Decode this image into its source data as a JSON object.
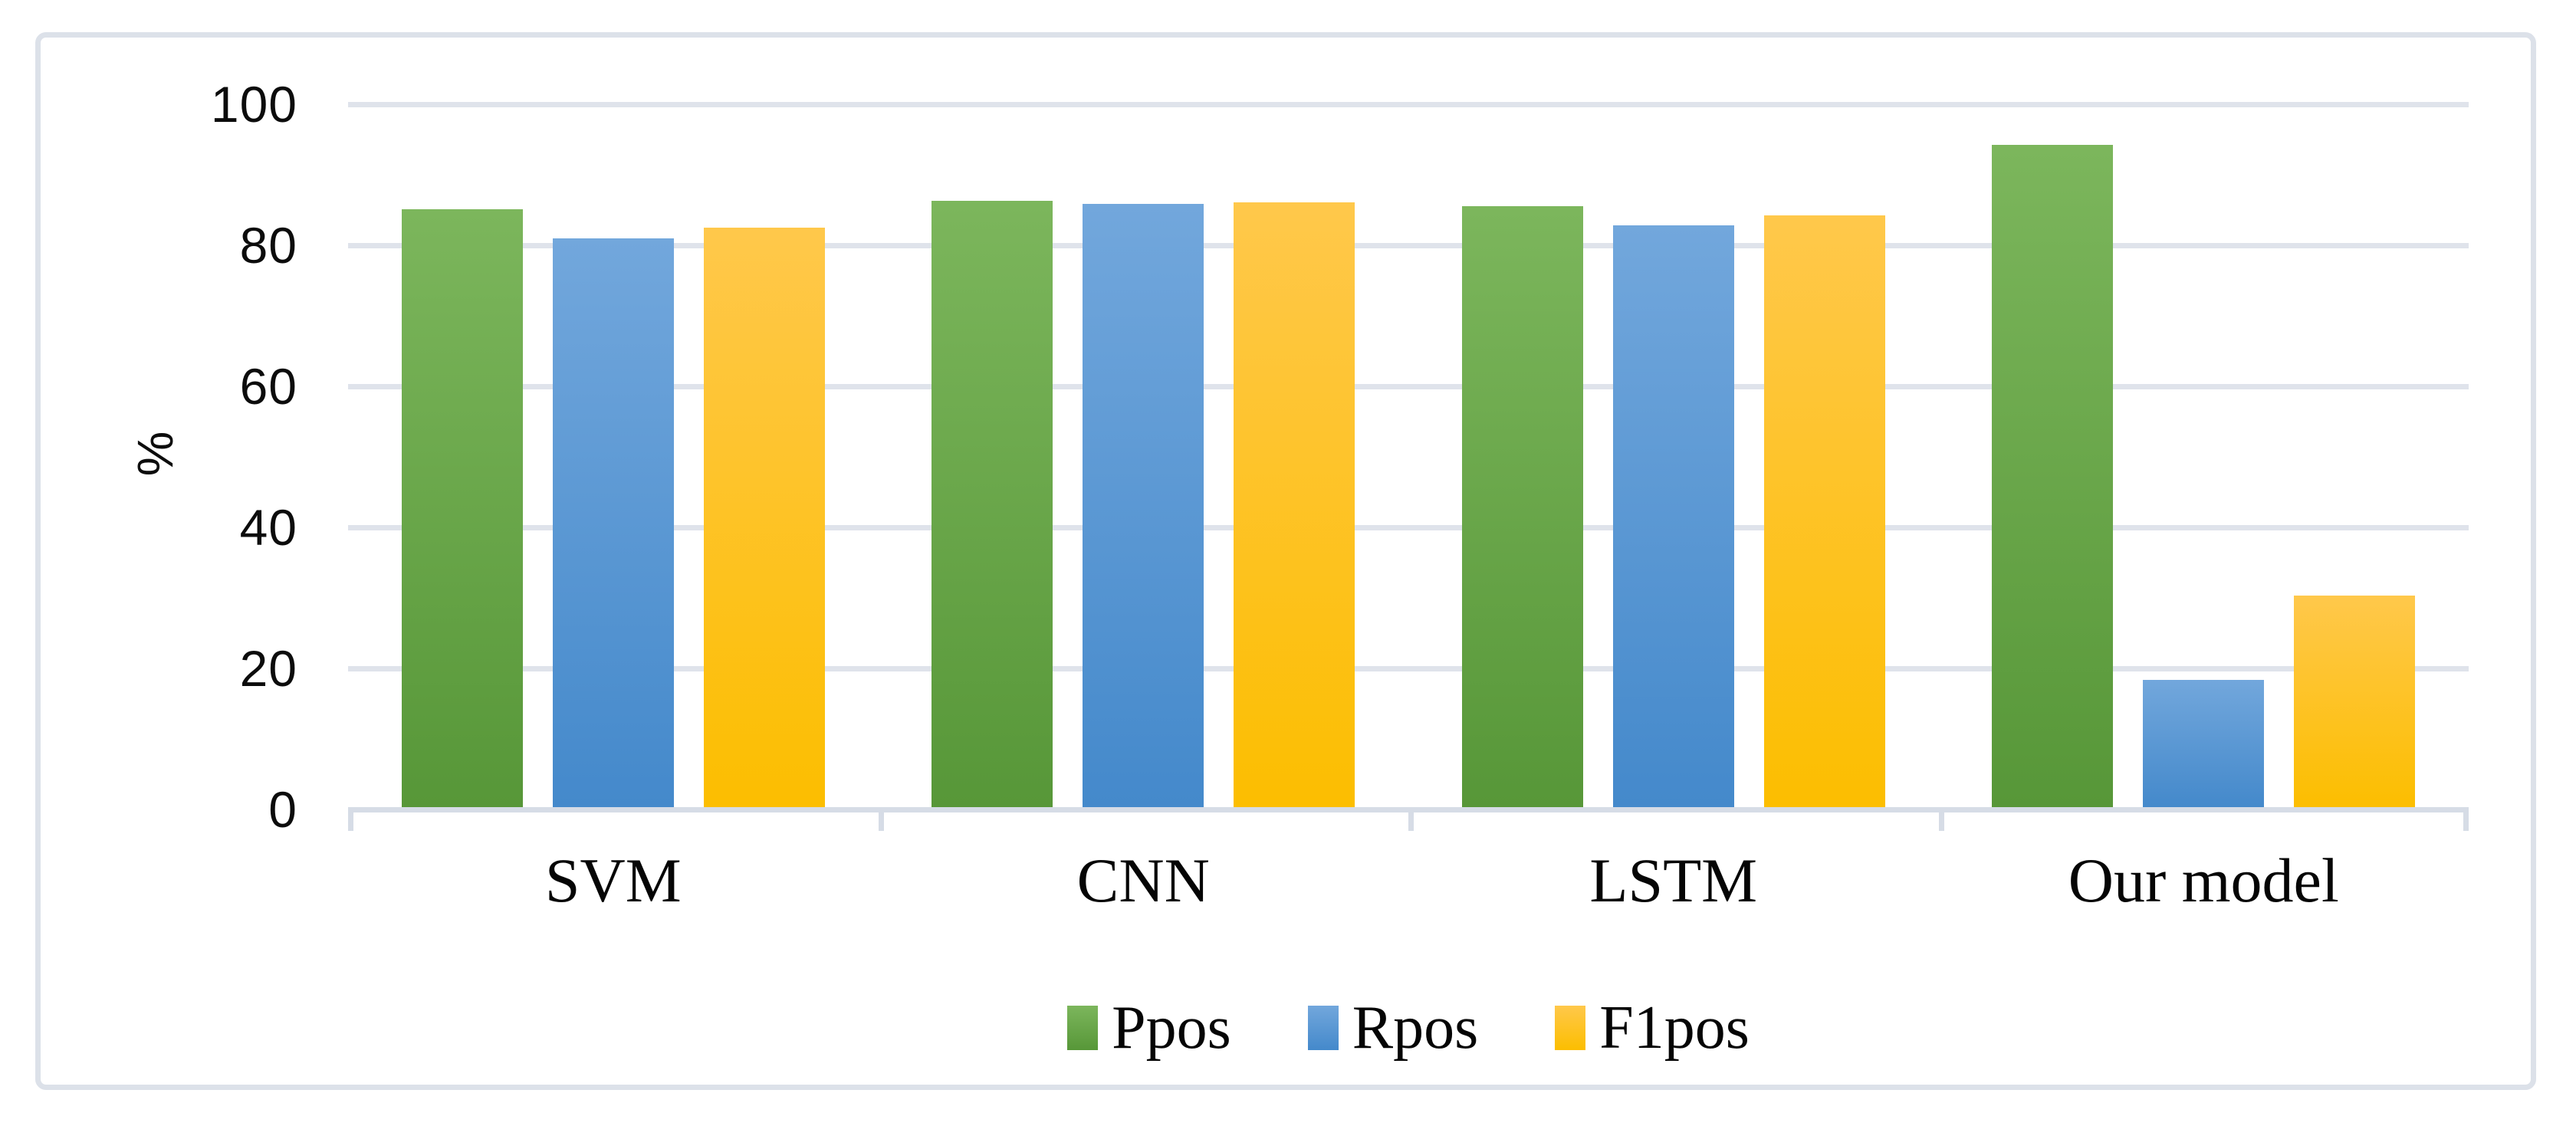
{
  "figure": {
    "background": "#ffffff",
    "frame_color": "#dce1e9"
  },
  "chart_data": {
    "type": "bar",
    "title": "",
    "xlabel": "",
    "ylabel": "%",
    "ylim": [
      0,
      100
    ],
    "yticks": [
      0,
      20,
      40,
      60,
      80,
      100
    ],
    "grid": true,
    "gridline_color": "#dfe3eb",
    "axis_color": "#d6dce6",
    "text_color": "#0c0c0c",
    "legend_position": "bottom",
    "categories": [
      "SVM",
      "CNN",
      "LSTM",
      "Our model"
    ],
    "series": [
      {
        "name": "Ppos",
        "color": "#70AD47",
        "gradient_top": "#7cb65c",
        "gradient_bottom": "#579738",
        "values": [
          84.8,
          86.0,
          85.2,
          93.9
        ]
      },
      {
        "name": "Rpos",
        "color": "#5B9BD5",
        "gradient_top": "#72a7dc",
        "gradient_bottom": "#4489cb",
        "values": [
          80.6,
          85.5,
          82.5,
          18.0
        ]
      },
      {
        "name": "F1pos",
        "color": "#FFC000",
        "gradient_top": "#ffc84b",
        "gradient_bottom": "#fcbe00",
        "values": [
          82.2,
          85.8,
          83.9,
          30.0
        ]
      }
    ]
  }
}
